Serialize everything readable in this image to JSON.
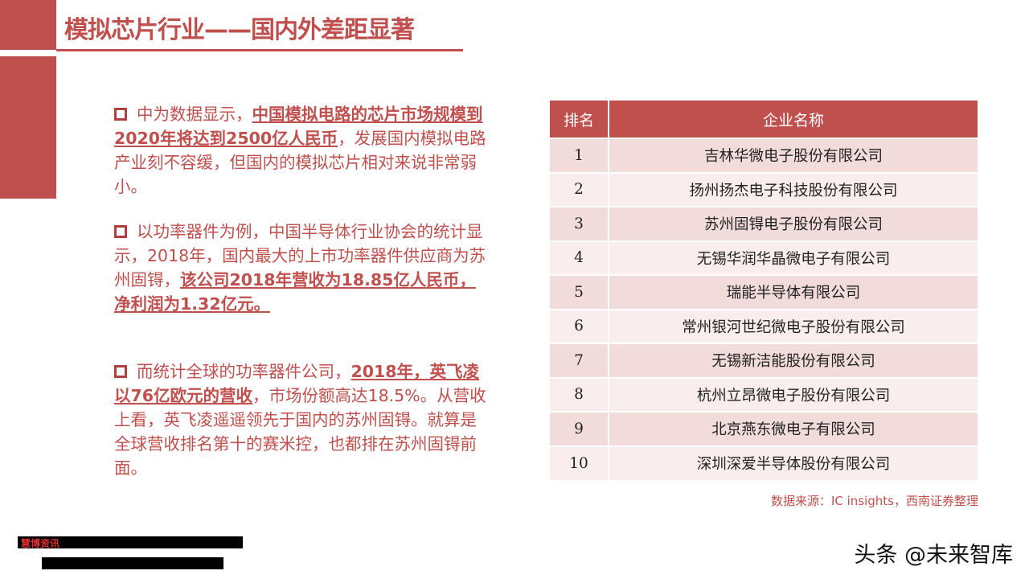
{
  "header": {
    "title": "模拟芯片行业——国内外差距显著"
  },
  "paragraphs": [
    {
      "plain_before": "中为数据显示，",
      "bold": "中国模拟电路的芯片市场规模到2020年将达到2500亿人民币",
      "plain_after": "，发展国内模拟电路产业刻不容缓，但国内的模拟芯片相对来说非常弱小。"
    },
    {
      "plain_before": "以功率器件为例，中国半导体行业协会的统计显示，2018年，国内最大的上市功率器件供应商为苏州固锝，",
      "bold": "该公司2018年营收为18.85亿人民币，净利润为1.32亿元。",
      "plain_after": ""
    },
    {
      "plain_before": "而统计全球的功率器件公司，",
      "bold": "2018年，英飞凌以76亿欧元的营收",
      "plain_after": "，市场份额高达18.5%。从营收上看，英飞凌遥遥领先于国内的苏州固锝。就算是全球营收排名第十的赛米控，也都排在苏州固锝前面。"
    }
  ],
  "table": {
    "headers": [
      "排名",
      "企业名称"
    ],
    "rows": [
      [
        "1",
        "吉林华微电子股份有限公司"
      ],
      [
        "2",
        "扬州扬杰电子科技股份有限公司"
      ],
      [
        "3",
        "苏州固锝电子股份有限公司"
      ],
      [
        "4",
        "无锡华润华晶微电子有限公司"
      ],
      [
        "5",
        "瑞能半导体有限公司"
      ],
      [
        "6",
        "常州银河世纪微电子股份有限公司"
      ],
      [
        "7",
        "无锡新洁能股份有限公司"
      ],
      [
        "8",
        "杭州立昂微电子股份有限公司"
      ],
      [
        "9",
        "北京燕东微电子有限公司"
      ],
      [
        "10",
        "深圳深爱半导体股份有限公司"
      ]
    ]
  },
  "source": "数据来源：IC insights，西南证券整理",
  "watermark": "头条 @未来智库",
  "redacted_label": "慧博资讯",
  "colors": {
    "accent": "#c0504d",
    "row_light": "#f2dcdb"
  }
}
